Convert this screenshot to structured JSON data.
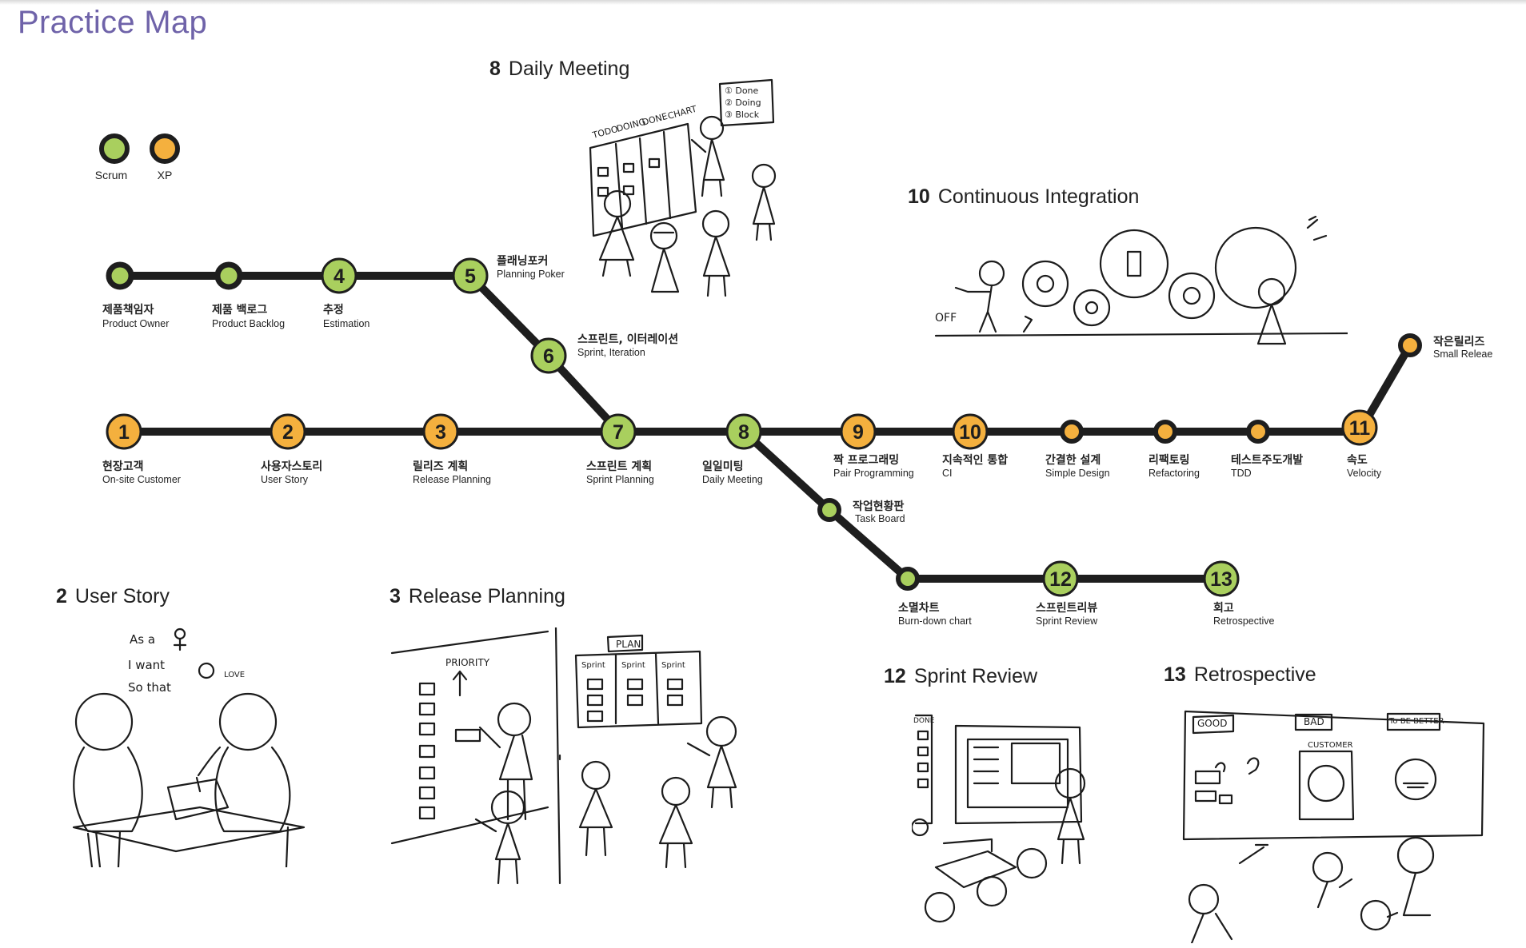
{
  "title": "Practice Map",
  "legend": [
    {
      "label": "Scrum",
      "color": "#a9cf5e"
    },
    {
      "label": "XP",
      "color": "#f4b03e"
    }
  ],
  "colors": {
    "line": "#1e1e1e",
    "scrum": "#a9cf5e",
    "xp": "#f4b03e",
    "title": "#6f63a9"
  },
  "stations": [
    {
      "id": "s_po",
      "num": "",
      "ko": "제품책임자",
      "en": "Product Owner",
      "type": "scrum"
    },
    {
      "id": "s_pb",
      "num": "",
      "ko": "제품 백로그",
      "en": "Product Backlog",
      "type": "scrum"
    },
    {
      "id": "s4",
      "num": "4",
      "ko": "추정",
      "en": "Estimation",
      "type": "scrum"
    },
    {
      "id": "s5",
      "num": "5",
      "ko": "플래닝포커",
      "en": "Planning Poker",
      "type": "scrum"
    },
    {
      "id": "s6",
      "num": "6",
      "ko": "스프린트, 이터레이션",
      "en": "Sprint, Iteration",
      "type": "scrum"
    },
    {
      "id": "s1",
      "num": "1",
      "ko": "현장고객",
      "en": "On-site Customer",
      "type": "xp"
    },
    {
      "id": "s2",
      "num": "2",
      "ko": "사용자스토리",
      "en": "User Story",
      "type": "xp"
    },
    {
      "id": "s3",
      "num": "3",
      "ko": "릴리즈 계획",
      "en": "Release Planning",
      "type": "xp"
    },
    {
      "id": "s7",
      "num": "7",
      "ko": "스프린트 계획",
      "en": "Sprint Planning",
      "type": "scrum"
    },
    {
      "id": "s8",
      "num": "8",
      "ko": "일일미팅",
      "en": "Daily Meeting",
      "type": "scrum"
    },
    {
      "id": "s9",
      "num": "9",
      "ko": "짝 프로그래밍",
      "en": "Pair Programming",
      "type": "xp"
    },
    {
      "id": "s10",
      "num": "10",
      "ko": "지속적인 통합",
      "en": "CI",
      "type": "xp"
    },
    {
      "id": "s_sd",
      "num": "",
      "ko": "간결한 설계",
      "en": "Simple Design",
      "type": "xp"
    },
    {
      "id": "s_rf",
      "num": "",
      "ko": "리팩토링",
      "en": "Refactoring",
      "type": "xp"
    },
    {
      "id": "s_tdd",
      "num": "",
      "ko": "테스트주도개발",
      "en": "TDD",
      "type": "xp"
    },
    {
      "id": "s11",
      "num": "11",
      "ko": "속도",
      "en": "Velocity",
      "type": "xp"
    },
    {
      "id": "s_sr",
      "num": "",
      "ko": "작은릴리즈",
      "en": "Small Releae",
      "type": "xp"
    },
    {
      "id": "s_tb",
      "num": "",
      "ko": "작업현황판",
      "en": "Task Board",
      "type": "scrum"
    },
    {
      "id": "s_bd",
      "num": "",
      "ko": "소멸차트",
      "en": "Burn-down chart",
      "type": "scrum"
    },
    {
      "id": "s12",
      "num": "12",
      "ko": "스프린트리뷰",
      "en": "Sprint Review",
      "type": "scrum"
    },
    {
      "id": "s13",
      "num": "13",
      "ko": "회고",
      "en": "Retrospective",
      "type": "scrum"
    }
  ],
  "sections": [
    {
      "id": "daily",
      "num": "8",
      "title": "Daily Meeting"
    },
    {
      "id": "ci",
      "num": "10",
      "title": "Continuous Integration"
    },
    {
      "id": "story",
      "num": "2",
      "title": "User Story"
    },
    {
      "id": "release",
      "num": "3",
      "title": "Release Planning"
    },
    {
      "id": "review",
      "num": "12",
      "title": "Sprint Review"
    },
    {
      "id": "retro",
      "num": "13",
      "title": "Retrospective"
    }
  ],
  "sketch_text": {
    "board_cols": [
      "TODO",
      "DOING",
      "DONE",
      "CHART"
    ],
    "legend_notes": [
      "① Done",
      "② Doing",
      "③ Block"
    ],
    "off": "OFF",
    "as_a": "As a",
    "i_want": "I want",
    "so_that": "So that",
    "love": "LOVE",
    "priority": "PRIORITY",
    "plan": "PLAN",
    "sprint": "Sprint",
    "done": "DONE",
    "good": "GOOD",
    "bad": "BAD",
    "to_be_better": "To BE BETTER",
    "customer": "CUSTOMER"
  }
}
